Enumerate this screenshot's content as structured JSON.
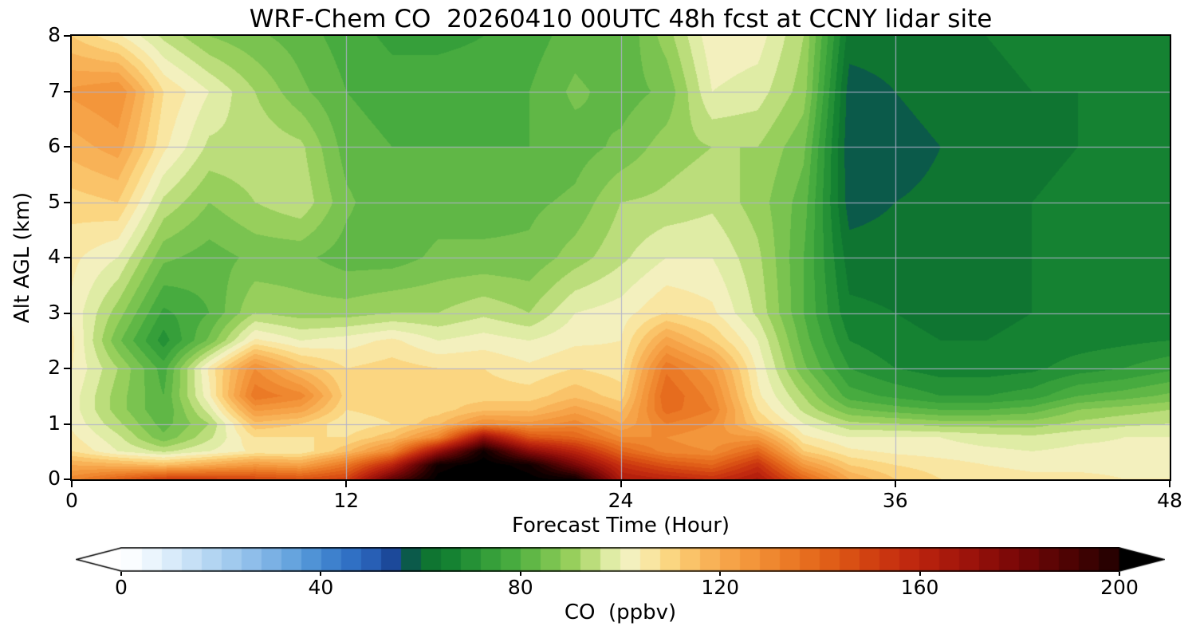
{
  "chart_data": {
    "type": "heatmap",
    "title": "WRF-Chem CO  20260410 00UTC 48h fcst at CCNY lidar site",
    "xlabel": "Forecast Time (Hour)",
    "ylabel": "Alt AGL (km)",
    "colorbar_label": "CO  (ppbv)",
    "xlim": [
      0,
      48
    ],
    "ylim": [
      0,
      8
    ],
    "x_ticks": [
      0,
      12,
      24,
      36,
      48
    ],
    "y_ticks": [
      0,
      1,
      2,
      3,
      4,
      5,
      6,
      7,
      8
    ],
    "x_gridlines": [
      12,
      24,
      36
    ],
    "y_gridlines": [
      1,
      2,
      3,
      4,
      5,
      6,
      7
    ],
    "grid_color": "#b0b0cc",
    "colorbar_ticks": [
      0,
      40,
      80,
      120,
      160,
      200
    ],
    "colorbar_range": [
      0,
      200
    ],
    "colorbar_extend": "both",
    "contour_interval_ppbv": 4,
    "x_hours": [
      0,
      2,
      4,
      6,
      8,
      10,
      12,
      14,
      16,
      18,
      20,
      22,
      24,
      26,
      28,
      30,
      32,
      34,
      36,
      38,
      40,
      42,
      44,
      46,
      48
    ],
    "y_alt_km": [
      0,
      0.25,
      0.5,
      0.75,
      1,
      1.25,
      1.5,
      2,
      2.5,
      3,
      4,
      5,
      6,
      7,
      8
    ],
    "values_ppbv": [
      [
        130,
        140,
        150,
        150,
        148,
        145,
        150,
        185,
        210,
        215,
        210,
        205,
        165,
        160,
        155,
        165,
        140,
        120,
        112,
        108,
        106,
        105,
        105,
        104,
        104
      ],
      [
        120,
        118,
        115,
        120,
        125,
        122,
        135,
        160,
        205,
        212,
        205,
        180,
        155,
        145,
        140,
        155,
        125,
        112,
        108,
        106,
        104,
        103,
        103,
        103,
        103
      ],
      [
        108,
        100,
        95,
        100,
        105,
        105,
        115,
        130,
        170,
        205,
        175,
        160,
        140,
        130,
        128,
        140,
        112,
        105,
        103,
        102,
        101,
        100,
        101,
        101,
        102
      ],
      [
        105,
        97,
        85,
        95,
        108,
        108,
        108,
        115,
        130,
        172,
        145,
        140,
        128,
        128,
        125,
        125,
        105,
        100,
        100,
        100,
        98,
        97,
        99,
        100,
        100
      ],
      [
        103,
        93,
        82,
        92,
        115,
        112,
        105,
        108,
        115,
        128,
        125,
        130,
        120,
        132,
        128,
        112,
        100,
        93,
        92,
        90,
        90,
        90,
        93,
        95,
        96
      ],
      [
        102,
        90,
        80,
        98,
        125,
        122,
        108,
        110,
        110,
        115,
        115,
        122,
        115,
        138,
        132,
        108,
        95,
        85,
        82,
        80,
        80,
        82,
        88,
        90,
        92
      ],
      [
        102,
        90,
        80,
        103,
        135,
        130,
        110,
        112,
        110,
        110,
        110,
        115,
        110,
        140,
        130,
        105,
        92,
        78,
        75,
        72,
        72,
        74,
        80,
        82,
        85
      ],
      [
        104,
        92,
        78,
        105,
        128,
        115,
        108,
        110,
        108,
        108,
        105,
        108,
        106,
        135,
        125,
        103,
        85,
        72,
        68,
        66,
        66,
        67,
        70,
        72,
        75
      ],
      [
        105,
        85,
        70,
        85,
        105,
        100,
        102,
        105,
        100,
        102,
        100,
        103,
        104,
        122,
        112,
        100,
        82,
        68,
        65,
        64,
        64,
        65,
        66,
        67,
        68
      ],
      [
        103,
        90,
        75,
        80,
        92,
        90,
        90,
        92,
        92,
        95,
        92,
        100,
        102,
        108,
        105,
        95,
        80,
        65,
        64,
        63,
        63,
        64,
        65,
        65,
        66
      ],
      [
        105,
        100,
        85,
        82,
        85,
        85,
        82,
        82,
        85,
        85,
        85,
        90,
        95,
        100,
        100,
        93,
        80,
        62,
        62,
        62,
        62,
        64,
        65,
        65,
        65
      ],
      [
        110,
        112,
        95,
        88,
        92,
        95,
        85,
        80,
        82,
        82,
        83,
        85,
        92,
        93,
        95,
        90,
        82,
        58,
        60,
        61,
        62,
        64,
        65,
        66,
        66
      ],
      [
        118,
        122,
        105,
        95,
        95,
        93,
        82,
        80,
        80,
        80,
        80,
        82,
        85,
        90,
        92,
        92,
        85,
        57,
        58,
        60,
        62,
        63,
        64,
        65,
        66
      ],
      [
        125,
        128,
        108,
        100,
        92,
        85,
        80,
        78,
        78,
        78,
        80,
        85,
        82,
        85,
        100,
        98,
        90,
        58,
        60,
        62,
        63,
        64,
        64,
        65,
        66
      ],
      [
        112,
        105,
        95,
        88,
        85,
        82,
        78,
        75,
        75,
        76,
        78,
        82,
        80,
        90,
        103,
        102,
        92,
        62,
        62,
        63,
        64,
        65,
        66,
        66,
        67
      ]
    ],
    "colormap_stops": [
      [
        0,
        "#ffffff"
      ],
      [
        4,
        "#f4fafe"
      ],
      [
        10,
        "#d9ebfa"
      ],
      [
        18,
        "#b3d5f2"
      ],
      [
        26,
        "#8fbeea"
      ],
      [
        34,
        "#66a4de"
      ],
      [
        40,
        "#458ad2"
      ],
      [
        46,
        "#3070c4"
      ],
      [
        52,
        "#2456ae"
      ],
      [
        56,
        "#143c85"
      ],
      [
        58,
        "#0b5a4a"
      ],
      [
        61,
        "#0d7231"
      ],
      [
        66,
        "#158232"
      ],
      [
        72,
        "#2d9938"
      ],
      [
        78,
        "#47ab3f"
      ],
      [
        84,
        "#6cbd4a"
      ],
      [
        90,
        "#97cf5c"
      ],
      [
        95,
        "#c4e183"
      ],
      [
        99,
        "#e8efb0"
      ],
      [
        103,
        "#f6f0c2"
      ],
      [
        108,
        "#fbdf8d"
      ],
      [
        114,
        "#fac369"
      ],
      [
        120,
        "#f7a94e"
      ],
      [
        128,
        "#f18f35"
      ],
      [
        136,
        "#e97321"
      ],
      [
        144,
        "#dd5715"
      ],
      [
        152,
        "#cd3a10"
      ],
      [
        160,
        "#bb230e"
      ],
      [
        170,
        "#9c130b"
      ],
      [
        180,
        "#770707"
      ],
      [
        190,
        "#4e0303"
      ],
      [
        200,
        "#200000"
      ],
      [
        210,
        "#000000"
      ]
    ]
  }
}
